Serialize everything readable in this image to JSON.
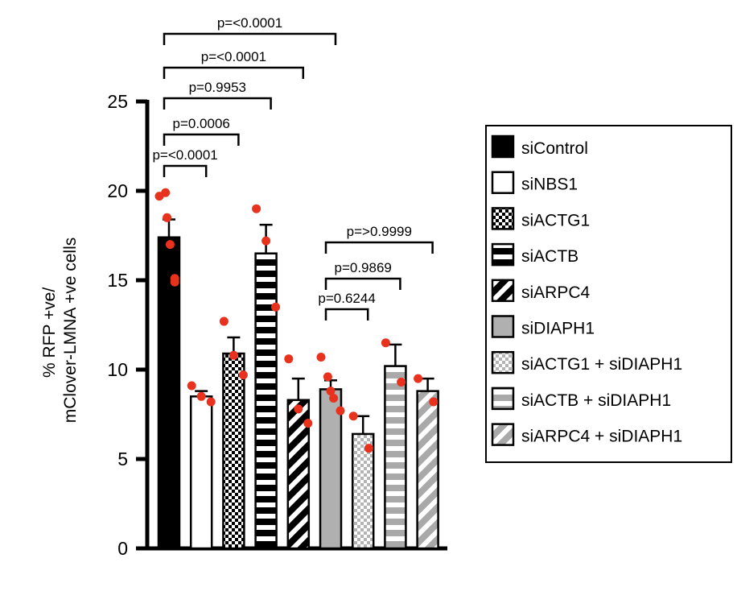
{
  "chart_data": {
    "type": "bar",
    "ylabel_line1": "% RFP +ve/",
    "ylabel_line2": "mClover-LMNA +ve cells",
    "ylim": [
      0,
      25
    ],
    "yticks": [
      0,
      5,
      10,
      15,
      20,
      25
    ],
    "legend_position": "right",
    "grid": false,
    "point_color": "#e8321e",
    "series": [
      {
        "name": "siControl",
        "value": 17.4,
        "error": 1.0,
        "pattern": "solid-black",
        "points": [
          19.7,
          19.9,
          18.5,
          17.0,
          15.1,
          14.9
        ]
      },
      {
        "name": "siNBS1",
        "value": 8.5,
        "error": 0.3,
        "pattern": "white",
        "points": [
          9.1,
          8.5,
          8.2
        ]
      },
      {
        "name": "siACTG1",
        "value": 10.9,
        "error": 0.9,
        "pattern": "checker-black",
        "points": [
          12.7,
          10.8,
          9.7
        ]
      },
      {
        "name": "siACTB",
        "value": 16.5,
        "error": 1.6,
        "pattern": "hstripe-black",
        "points": [
          19.0,
          17.2,
          13.5
        ]
      },
      {
        "name": "siARPC4",
        "value": 8.3,
        "error": 1.2,
        "pattern": "diag-black",
        "points": [
          10.6,
          7.8,
          7.0
        ]
      },
      {
        "name": "siDIAPH1",
        "value": 8.9,
        "error": 0.5,
        "pattern": "solid-gray",
        "points": [
          10.7,
          9.6,
          8.8,
          8.4,
          7.7
        ]
      },
      {
        "name": "siACTG1 + siDIAPH1",
        "value": 6.4,
        "error": 1.0,
        "pattern": "checker-gray",
        "points": [
          7.4,
          5.6
        ]
      },
      {
        "name": "siACTB + siDIAPH1",
        "value": 10.2,
        "error": 1.2,
        "pattern": "hstripe-gray",
        "points": [
          11.5,
          9.3
        ]
      },
      {
        "name": "siARPC4 + siDIAPH1",
        "value": 8.8,
        "error": 0.7,
        "pattern": "diag-gray",
        "points": [
          9.5,
          8.2
        ]
      }
    ],
    "annotations": [
      {
        "text": "p=<0.0001",
        "from": 0,
        "to": 1,
        "level": 1
      },
      {
        "text": "p=0.0006",
        "from": 0,
        "to": 2,
        "level": 2
      },
      {
        "text": "p=0.9953",
        "from": 0,
        "to": 3,
        "level": 3
      },
      {
        "text": "p=<0.0001",
        "from": 0,
        "to": 4,
        "level": 4
      },
      {
        "text": "p=<0.0001",
        "from": 0,
        "to": 5,
        "level": 5
      },
      {
        "text": "p=0.6244",
        "from": 5,
        "to": 6,
        "level": 1
      },
      {
        "text": "p=0.9869",
        "from": 5,
        "to": 7,
        "level": 2
      },
      {
        "text": "p=>0.9999",
        "from": 5,
        "to": 8,
        "level": 3
      }
    ]
  }
}
